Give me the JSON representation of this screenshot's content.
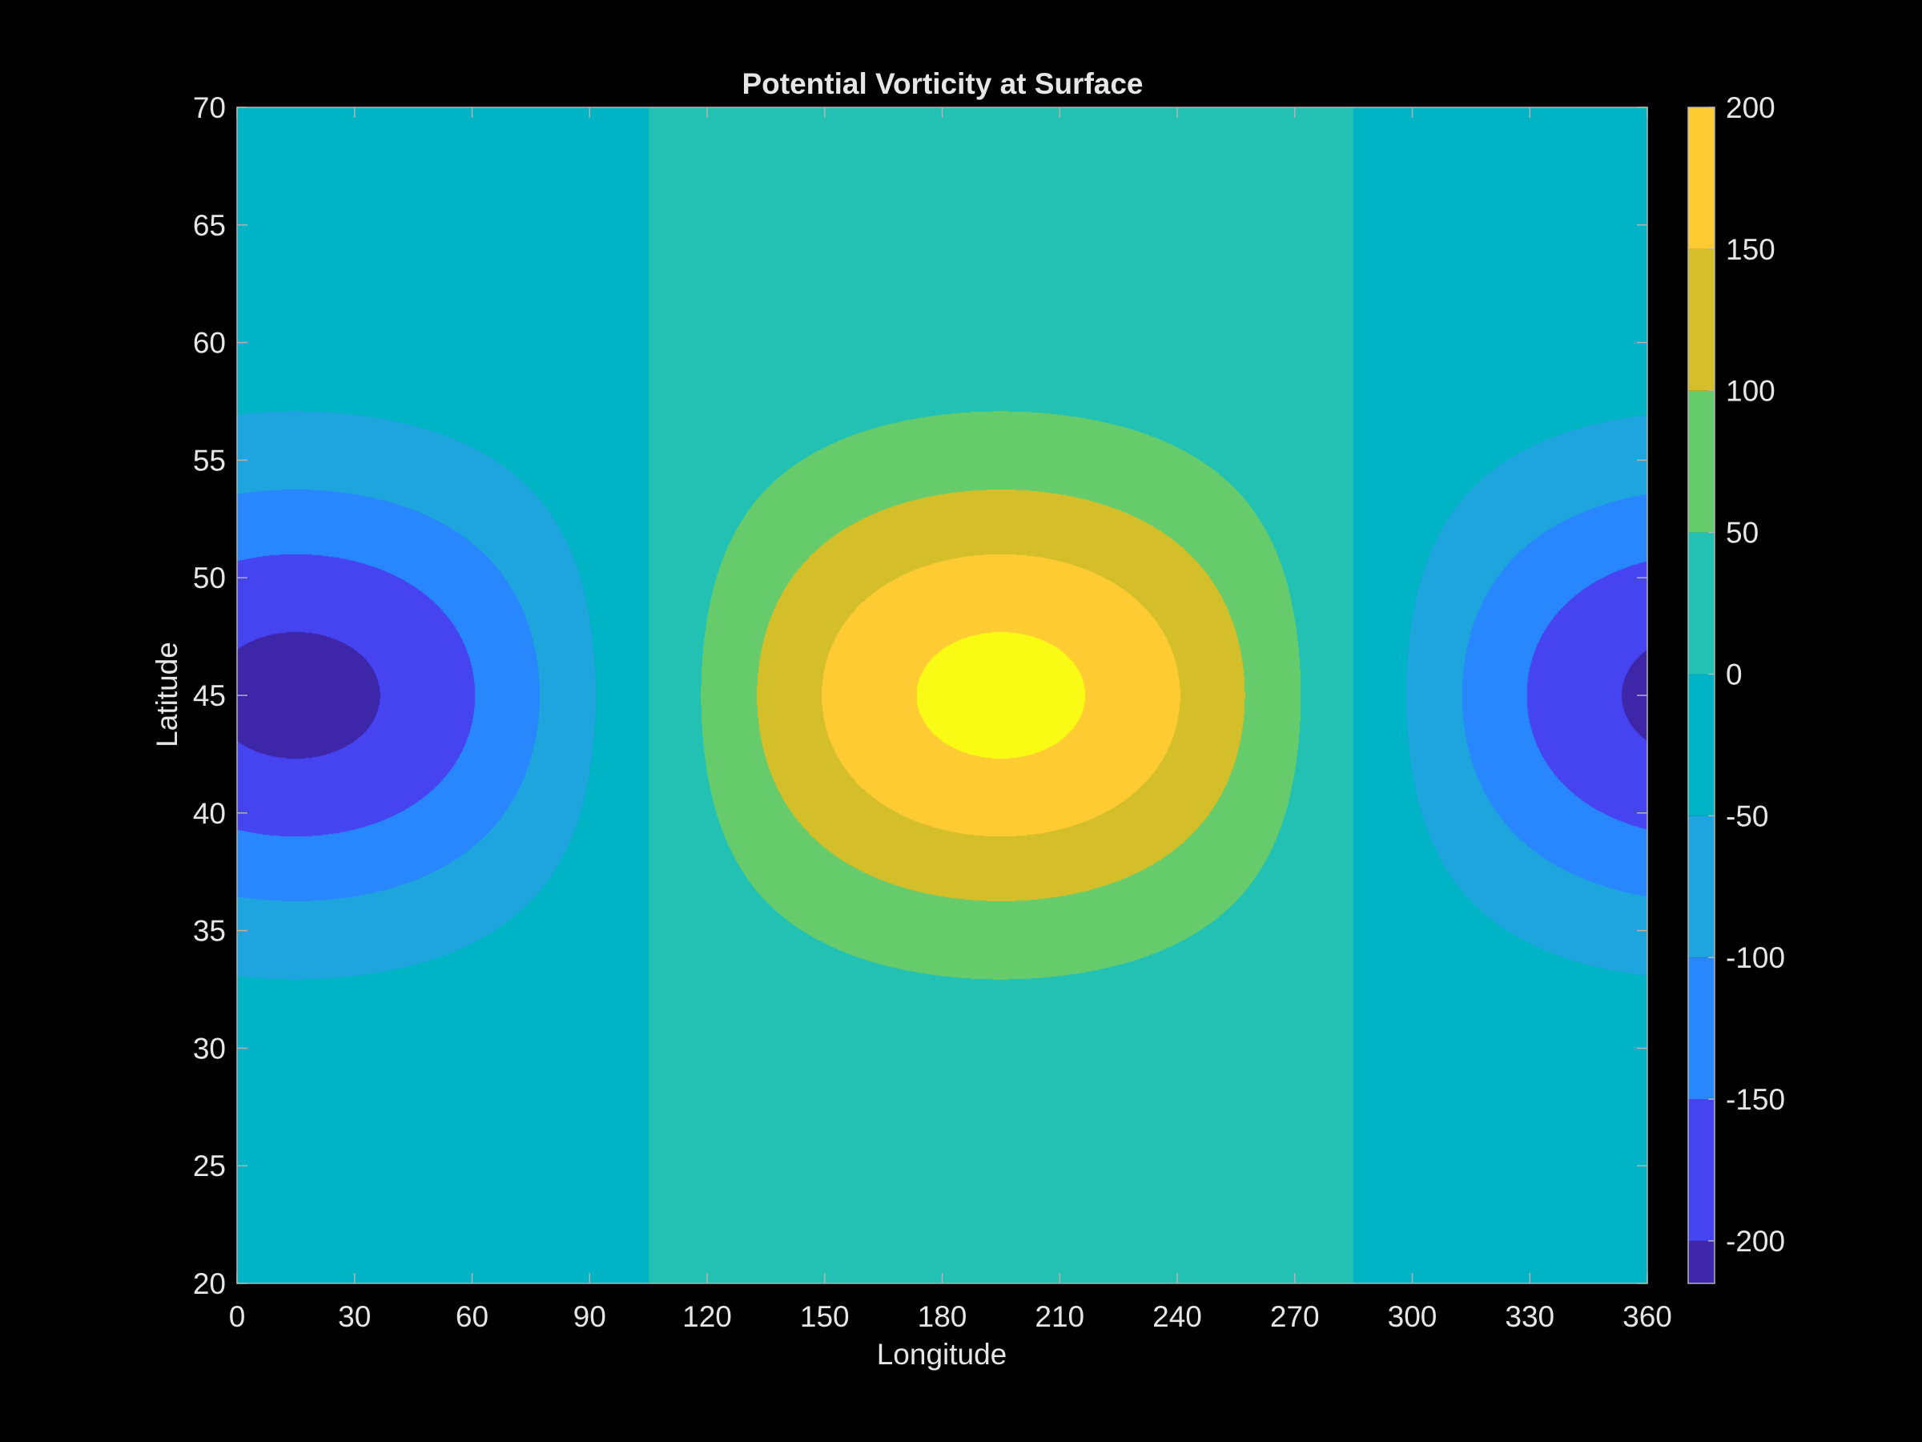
{
  "chart_data": {
    "type": "contourf",
    "title": "Potential Vorticity at Surface",
    "xlabel": "Longitude",
    "ylabel": "Latitude",
    "xlim": [
      0,
      360
    ],
    "ylim": [
      20,
      70
    ],
    "xticks": [
      0,
      30,
      60,
      90,
      120,
      150,
      180,
      210,
      240,
      270,
      300,
      330,
      360
    ],
    "yticks": [
      20,
      25,
      30,
      35,
      40,
      45,
      50,
      55,
      60,
      65,
      70
    ],
    "grid": false,
    "field": {
      "description": "pv(lon, lat) = 215 * cos(lon - 195deg) * exp(-((lat - 45) / 10)^2)",
      "amplitude": 215,
      "phase_lon": 195,
      "center_lat": 45,
      "width_lat": 10,
      "max": 215,
      "min": -215
    },
    "contour_levels": [
      -200,
      -150,
      -100,
      -50,
      0,
      50,
      100,
      150,
      200
    ],
    "colorbar": {
      "location": "right",
      "limits": [
        -215,
        200
      ],
      "ticks": [
        -200,
        -150,
        -100,
        -50,
        0,
        50,
        100,
        150,
        200
      ],
      "colormap": "parula",
      "colors": [
        "#3e26a8",
        "#4643f0",
        "#2887fd",
        "#1fa5dd",
        "#00b4c6",
        "#22c1b3",
        "#66cc6b",
        "#d4be2a",
        "#fecb32",
        "#f9fb14"
      ]
    }
  }
}
